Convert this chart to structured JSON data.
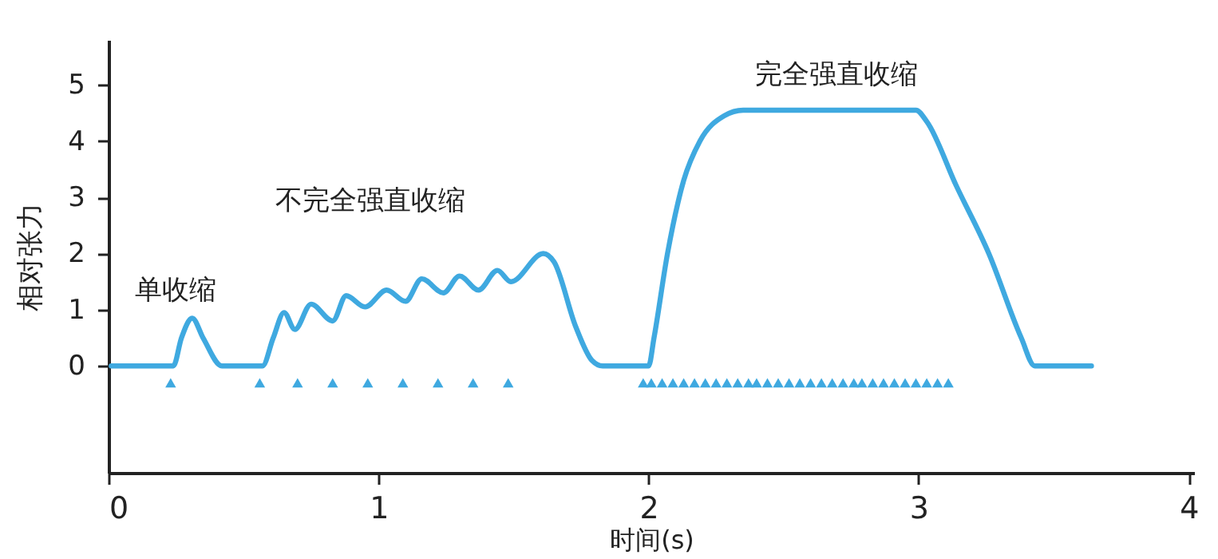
{
  "chart_data": {
    "type": "line",
    "xlabel": "时间(s)",
    "ylabel": "相对张力",
    "xlim": [
      0,
      4.02
    ],
    "ylim": [
      -1.9,
      5.8
    ],
    "xticks": [
      0,
      1,
      2,
      3,
      4
    ],
    "yticks": [
      0,
      1,
      2,
      3,
      4,
      5
    ],
    "grid": false,
    "annotations": [
      "单收缩",
      "不完全强直收缩",
      "完全强直收缩"
    ],
    "series": [
      {
        "color": "#3fa9e0",
        "line_style": "solid",
        "marker": "none",
        "x": [
          0.01,
          0.24,
          0.27,
          0.31,
          0.35,
          0.42,
          0.57,
          0.61,
          0.65,
          0.69,
          0.75,
          0.83,
          0.88,
          0.95,
          1.03,
          1.1,
          1.16,
          1.24,
          1.3,
          1.37,
          1.44,
          1.49,
          1.61,
          1.65,
          1.73,
          1.79,
          1.83,
          2.0,
          2.02,
          2.07,
          2.13,
          2.19,
          2.28,
          2.35,
          2.99,
          3.03,
          3.14,
          3.26,
          3.38,
          3.43,
          3.64
        ],
        "values": [
          0,
          0,
          0.5,
          0.85,
          0.5,
          0,
          0,
          0.5,
          0.95,
          0.65,
          1.1,
          0.8,
          1.25,
          1.05,
          1.35,
          1.15,
          1.55,
          1.3,
          1.6,
          1.35,
          1.7,
          1.5,
          2.0,
          1.85,
          0.7,
          0.1,
          0,
          0,
          0.5,
          2.0,
          3.3,
          4.0,
          4.45,
          4.55,
          4.55,
          4.35,
          3.2,
          2.0,
          0.5,
          0,
          0
        ]
      },
      {
        "type": "scatter",
        "color": "#3fa9e0",
        "marker": "triangle",
        "x": [
          0.23,
          0.56,
          0.7,
          0.83,
          0.96,
          1.09,
          1.22,
          1.35,
          1.48,
          1.98,
          2.01,
          2.05,
          2.09,
          2.13,
          2.17,
          2.21,
          2.25,
          2.29,
          2.33,
          2.37,
          2.4,
          2.44,
          2.48,
          2.52,
          2.56,
          2.6,
          2.64,
          2.68,
          2.72,
          2.76,
          2.79,
          2.83,
          2.87,
          2.91,
          2.95,
          2.99,
          3.03,
          3.07,
          3.11
        ],
        "values": [
          -0.3,
          -0.3,
          -0.3,
          -0.3,
          -0.3,
          -0.3,
          -0.3,
          -0.3,
          -0.3,
          -0.3,
          -0.3,
          -0.3,
          -0.3,
          -0.3,
          -0.3,
          -0.3,
          -0.3,
          -0.3,
          -0.3,
          -0.3,
          -0.3,
          -0.3,
          -0.3,
          -0.3,
          -0.3,
          -0.3,
          -0.3,
          -0.3,
          -0.3,
          -0.3,
          -0.3,
          -0.3,
          -0.3,
          -0.3,
          -0.3,
          -0.3,
          -0.3,
          -0.3,
          -0.3
        ]
      }
    ]
  }
}
